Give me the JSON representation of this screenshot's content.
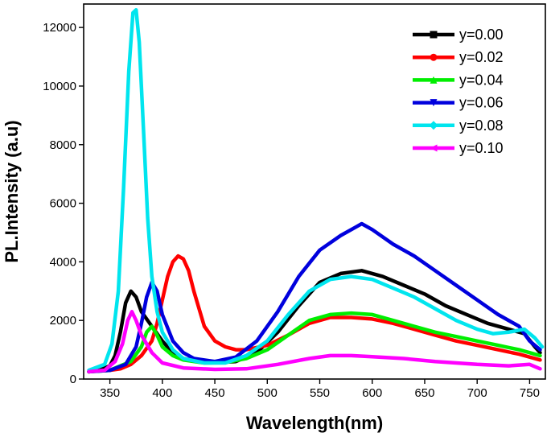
{
  "chart_data": {
    "type": "line",
    "title": "",
    "xlabel": "Wavelength(nm)",
    "ylabel": "PL.Intensity (a.u)",
    "xlim": [
      325,
      765
    ],
    "ylim": [
      0,
      12800
    ],
    "xticks": [
      350,
      400,
      450,
      500,
      550,
      600,
      650,
      700,
      750
    ],
    "yticks": [
      0,
      2000,
      4000,
      6000,
      8000,
      10000,
      12000
    ],
    "legend_position": "top-right",
    "series": [
      {
        "name": "y=0.00",
        "color": "#000000",
        "marker": "square",
        "points": [
          [
            330,
            250
          ],
          [
            340,
            300
          ],
          [
            350,
            450
          ],
          [
            355,
            800
          ],
          [
            360,
            1600
          ],
          [
            365,
            2600
          ],
          [
            370,
            3000
          ],
          [
            375,
            2800
          ],
          [
            380,
            2300
          ],
          [
            390,
            1800
          ],
          [
            400,
            1300
          ],
          [
            410,
            900
          ],
          [
            420,
            700
          ],
          [
            430,
            620
          ],
          [
            450,
            560
          ],
          [
            470,
            600
          ],
          [
            490,
            900
          ],
          [
            510,
            1600
          ],
          [
            530,
            2500
          ],
          [
            550,
            3300
          ],
          [
            570,
            3600
          ],
          [
            590,
            3700
          ],
          [
            610,
            3500
          ],
          [
            630,
            3200
          ],
          [
            650,
            2900
          ],
          [
            670,
            2500
          ],
          [
            690,
            2200
          ],
          [
            710,
            1900
          ],
          [
            730,
            1700
          ],
          [
            745,
            1550
          ],
          [
            755,
            1100
          ],
          [
            760,
            900
          ]
        ]
      },
      {
        "name": "y=0.02",
        "color": "#ff0000",
        "marker": "circle",
        "points": [
          [
            330,
            250
          ],
          [
            340,
            280
          ],
          [
            350,
            300
          ],
          [
            360,
            350
          ],
          [
            370,
            500
          ],
          [
            380,
            800
          ],
          [
            390,
            1300
          ],
          [
            395,
            1900
          ],
          [
            400,
            2700
          ],
          [
            405,
            3500
          ],
          [
            410,
            4000
          ],
          [
            415,
            4200
          ],
          [
            420,
            4100
          ],
          [
            425,
            3700
          ],
          [
            430,
            3000
          ],
          [
            440,
            1800
          ],
          [
            450,
            1300
          ],
          [
            460,
            1100
          ],
          [
            470,
            1000
          ],
          [
            480,
            1000
          ],
          [
            500,
            1150
          ],
          [
            520,
            1500
          ],
          [
            540,
            1900
          ],
          [
            560,
            2100
          ],
          [
            580,
            2100
          ],
          [
            600,
            2050
          ],
          [
            620,
            1900
          ],
          [
            640,
            1700
          ],
          [
            660,
            1500
          ],
          [
            680,
            1300
          ],
          [
            700,
            1150
          ],
          [
            720,
            1000
          ],
          [
            740,
            850
          ],
          [
            760,
            650
          ]
        ]
      },
      {
        "name": "y=0.04",
        "color": "#00ee00",
        "marker": "triangle-up",
        "points": [
          [
            330,
            250
          ],
          [
            350,
            300
          ],
          [
            370,
            600
          ],
          [
            380,
            1100
          ],
          [
            385,
            1600
          ],
          [
            390,
            1800
          ],
          [
            395,
            1500
          ],
          [
            400,
            1100
          ],
          [
            410,
            800
          ],
          [
            420,
            650
          ],
          [
            440,
            550
          ],
          [
            460,
            560
          ],
          [
            480,
            700
          ],
          [
            500,
            1000
          ],
          [
            520,
            1500
          ],
          [
            540,
            2000
          ],
          [
            560,
            2200
          ],
          [
            580,
            2250
          ],
          [
            600,
            2200
          ],
          [
            620,
            2000
          ],
          [
            640,
            1800
          ],
          [
            660,
            1600
          ],
          [
            680,
            1450
          ],
          [
            700,
            1300
          ],
          [
            720,
            1150
          ],
          [
            740,
            1000
          ],
          [
            760,
            800
          ]
        ]
      },
      {
        "name": "y=0.06",
        "color": "#0000dd",
        "marker": "triangle-down",
        "points": [
          [
            330,
            250
          ],
          [
            350,
            300
          ],
          [
            365,
            500
          ],
          [
            375,
            1100
          ],
          [
            380,
            1900
          ],
          [
            385,
            2800
          ],
          [
            390,
            3300
          ],
          [
            395,
            3000
          ],
          [
            400,
            2200
          ],
          [
            410,
            1300
          ],
          [
            420,
            900
          ],
          [
            430,
            700
          ],
          [
            450,
            600
          ],
          [
            470,
            750
          ],
          [
            490,
            1300
          ],
          [
            510,
            2300
          ],
          [
            530,
            3500
          ],
          [
            550,
            4400
          ],
          [
            570,
            4900
          ],
          [
            585,
            5200
          ],
          [
            590,
            5300
          ],
          [
            600,
            5100
          ],
          [
            620,
            4600
          ],
          [
            640,
            4200
          ],
          [
            660,
            3700
          ],
          [
            680,
            3200
          ],
          [
            700,
            2700
          ],
          [
            720,
            2200
          ],
          [
            740,
            1800
          ],
          [
            750,
            1300
          ],
          [
            760,
            1000
          ]
        ]
      },
      {
        "name": "y=0.08",
        "color": "#00e5ee",
        "marker": "diamond",
        "points": [
          [
            330,
            300
          ],
          [
            345,
            500
          ],
          [
            352,
            1200
          ],
          [
            358,
            3000
          ],
          [
            363,
            6500
          ],
          [
            368,
            10500
          ],
          [
            372,
            12500
          ],
          [
            375,
            12600
          ],
          [
            378,
            11500
          ],
          [
            382,
            8500
          ],
          [
            386,
            5500
          ],
          [
            390,
            3500
          ],
          [
            395,
            2300
          ],
          [
            400,
            1600
          ],
          [
            410,
            1000
          ],
          [
            420,
            700
          ],
          [
            440,
            550
          ],
          [
            460,
            550
          ],
          [
            480,
            800
          ],
          [
            500,
            1300
          ],
          [
            520,
            2200
          ],
          [
            540,
            3000
          ],
          [
            560,
            3400
          ],
          [
            580,
            3500
          ],
          [
            600,
            3400
          ],
          [
            620,
            3100
          ],
          [
            640,
            2800
          ],
          [
            660,
            2400
          ],
          [
            680,
            2000
          ],
          [
            700,
            1700
          ],
          [
            715,
            1550
          ],
          [
            730,
            1600
          ],
          [
            745,
            1700
          ],
          [
            755,
            1400
          ],
          [
            762,
            1100
          ]
        ]
      },
      {
        "name": "y=0.10",
        "color": "#ff00ff",
        "marker": "triangle-left",
        "points": [
          [
            330,
            250
          ],
          [
            345,
            300
          ],
          [
            355,
            600
          ],
          [
            362,
            1200
          ],
          [
            367,
            2000
          ],
          [
            371,
            2300
          ],
          [
            375,
            2000
          ],
          [
            380,
            1500
          ],
          [
            390,
            900
          ],
          [
            400,
            550
          ],
          [
            420,
            380
          ],
          [
            450,
            330
          ],
          [
            480,
            350
          ],
          [
            510,
            500
          ],
          [
            540,
            700
          ],
          [
            560,
            800
          ],
          [
            580,
            800
          ],
          [
            600,
            760
          ],
          [
            630,
            700
          ],
          [
            660,
            600
          ],
          [
            700,
            500
          ],
          [
            730,
            450
          ],
          [
            750,
            500
          ],
          [
            760,
            350
          ]
        ]
      }
    ]
  }
}
